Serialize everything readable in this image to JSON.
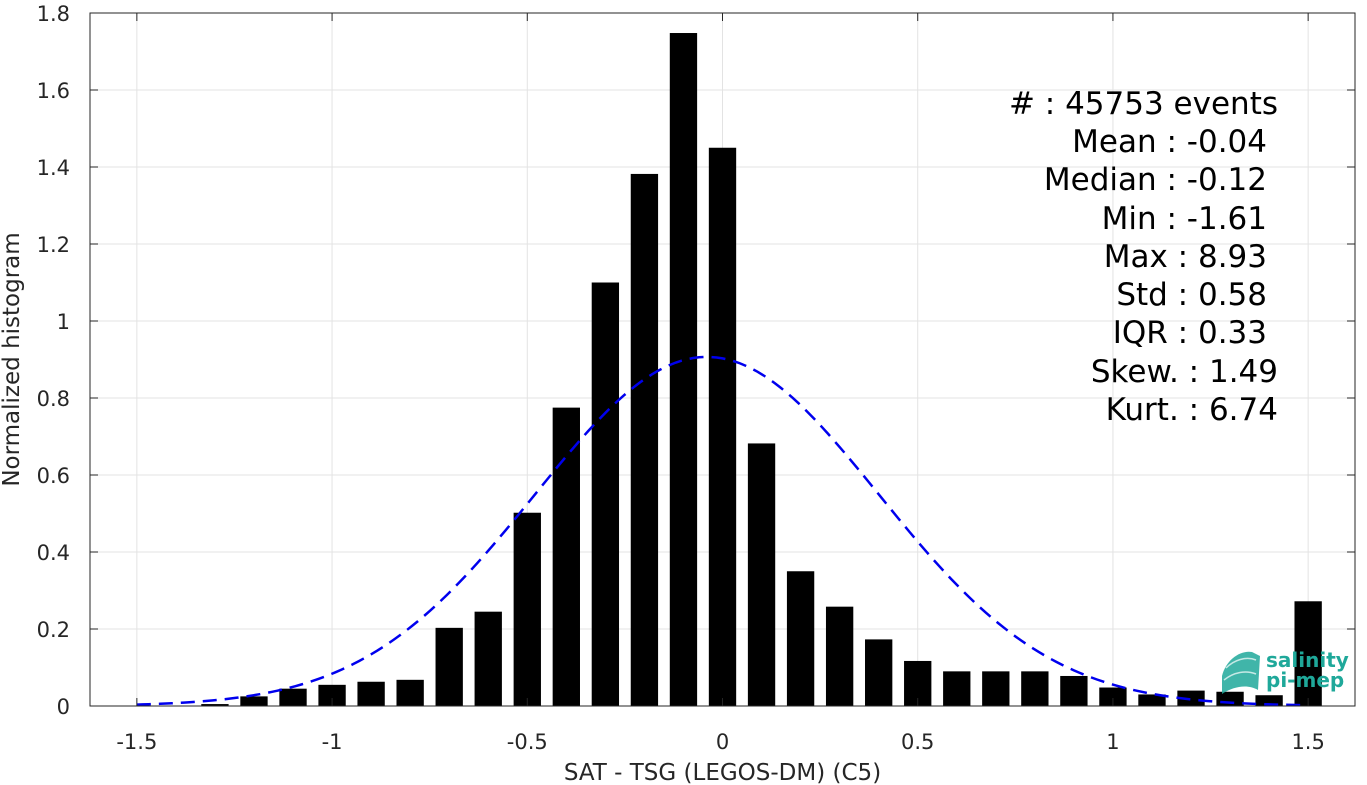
{
  "chart_data": {
    "type": "bar",
    "xlabel": "SAT - TSG (LEGOS-DM) (C5)",
    "ylabel": "Normalized histogram",
    "xlim": [
      -1.62,
      1.62
    ],
    "ylim": [
      0,
      1.8
    ],
    "xticks": [
      -1.5,
      -1,
      -0.5,
      0,
      0.5,
      1,
      1.5
    ],
    "xtick_labels": [
      "-1.5",
      "-1",
      "-0.5",
      "0",
      "0.5",
      "1",
      "1.5"
    ],
    "yticks": [
      0,
      0.2,
      0.4,
      0.6,
      0.8,
      1,
      1.2,
      1.4,
      1.6,
      1.8
    ],
    "ytick_labels": [
      "0",
      "0.2",
      "0.4",
      "0.6",
      "0.8",
      "1",
      "1.2",
      "1.4",
      "1.6",
      "1.8"
    ],
    "grid": true,
    "bar_width": 0.07,
    "bar_color": "#000000",
    "bars": {
      "x": [
        -1.3,
        -1.2,
        -1.1,
        -1.0,
        -0.9,
        -0.8,
        -0.7,
        -0.6,
        -0.5,
        -0.4,
        -0.3,
        -0.2,
        -0.1,
        0.0,
        0.1,
        0.2,
        0.3,
        0.4,
        0.5,
        0.6,
        0.7,
        0.8,
        0.9,
        1.0,
        1.1,
        1.2,
        1.3,
        1.4,
        1.5
      ],
      "values": [
        0.005,
        0.025,
        0.045,
        0.055,
        0.063,
        0.068,
        0.203,
        0.245,
        0.502,
        0.775,
        1.1,
        1.382,
        1.748,
        1.45,
        0.682,
        0.35,
        0.258,
        0.173,
        0.117,
        0.09,
        0.09,
        0.09,
        0.078,
        0.048,
        0.03,
        0.04,
        0.037,
        0.028,
        0.272
      ]
    },
    "fit_curve": {
      "style": "dashed",
      "color": "#0000ee",
      "distribution": "normal",
      "mean": -0.04,
      "std": 0.44,
      "x_range": [
        -1.5,
        1.5
      ]
    },
    "stats": [
      "#  : 45753 events",
      "Mean : -0.04",
      "Median : -0.12",
      "Min : -1.61",
      "Max : 8.93",
      "Std : 0.58",
      "IQR : 0.33",
      "Skew. : 1.49",
      "Kurt. : 6.74"
    ]
  },
  "logo": {
    "line1": "salinity",
    "line2": "pi-mep",
    "color": "#1fa89a"
  }
}
